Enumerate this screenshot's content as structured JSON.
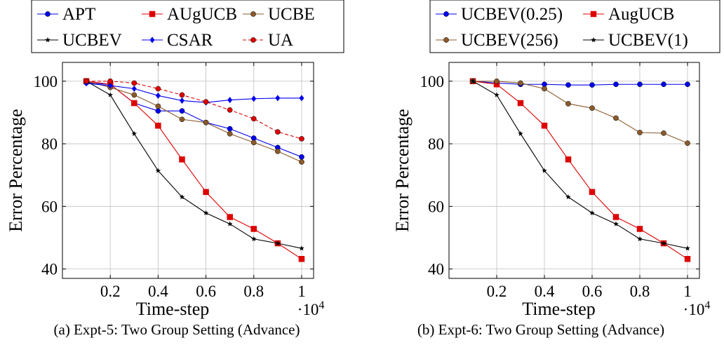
{
  "figure": {
    "captions": [
      "(a) Expt-5: Two Group Setting (Advance)",
      "(b) Expt-6: Two Group Setting (Advance)"
    ]
  },
  "chart_data": [
    {
      "type": "line",
      "xlabel": "Time-step",
      "ylabel": "Error Percentage",
      "x_multiplier": "·10^4",
      "x": [
        0.1,
        0.2,
        0.3,
        0.4,
        0.5,
        0.6,
        0.7,
        0.8,
        0.9,
        1.0
      ],
      "xlim": [
        0.0,
        1.05
      ],
      "ylim": [
        37,
        106
      ],
      "xticks": [
        0.2,
        0.4,
        0.6,
        0.8,
        1.0
      ],
      "xtick_labels": [
        "0.2",
        "0.4",
        "0.6",
        "0.8",
        "1"
      ],
      "yticks": [
        40,
        60,
        80,
        100
      ],
      "ytick_labels": [
        "40",
        "60",
        "80",
        "100"
      ],
      "grid": true,
      "legend_placement": "above, 3 columns",
      "series": [
        {
          "name": "APT",
          "color": "#0000ee",
          "marker": "circle",
          "dashed": false,
          "values": [
            99.5,
            99,
            93,
            90.5,
            90.5,
            86.8,
            84.8,
            81.8,
            78.8,
            75.8
          ]
        },
        {
          "name": "AUgUCB",
          "color": "#dd0000",
          "marker": "square",
          "dashed": false,
          "values": [
            100,
            99,
            93,
            85.8,
            75,
            64.6,
            56.6,
            52.8,
            48.2,
            43.2
          ]
        },
        {
          "name": "UCBE",
          "color": "#8b5a2b",
          "marker": "circle",
          "dashed": false,
          "values": [
            100,
            98,
            95.6,
            92,
            87.8,
            86.8,
            83.2,
            80.4,
            77.6,
            74.2
          ]
        },
        {
          "name": "UCBEV",
          "color": "#000000",
          "marker": "star",
          "dashed": false,
          "values": [
            100,
            95.6,
            83.2,
            71.4,
            63,
            57.9,
            54.4,
            49.6,
            48.2,
            46.6
          ]
        },
        {
          "name": "CSAR",
          "color": "#0000ee",
          "marker": "diamond",
          "dashed": false,
          "values": [
            99.3,
            98.6,
            97.6,
            95.4,
            93.8,
            93.2,
            94,
            94.4,
            94.6,
            94.6
          ]
        },
        {
          "name": "UA",
          "color": "#dd0000",
          "marker": "circle",
          "dashed": true,
          "values": [
            100,
            100,
            99.4,
            97.6,
            95.6,
            93.4,
            90.8,
            88,
            83.8,
            81.6
          ]
        }
      ]
    },
    {
      "type": "line",
      "xlabel": "Time-step",
      "ylabel": "Error Percentage",
      "x_multiplier": "·10^4",
      "x": [
        0.1,
        0.2,
        0.3,
        0.4,
        0.5,
        0.6,
        0.7,
        0.8,
        0.9,
        1.0
      ],
      "xlim": [
        0.0,
        1.05
      ],
      "ylim": [
        37,
        106
      ],
      "xticks": [
        0.2,
        0.4,
        0.6,
        0.8,
        1.0
      ],
      "xtick_labels": [
        "0.2",
        "0.4",
        "0.6",
        "0.8",
        "1"
      ],
      "yticks": [
        40,
        60,
        80,
        100
      ],
      "ytick_labels": [
        "40",
        "60",
        "80",
        "100"
      ],
      "grid": true,
      "legend_placement": "above, 2 columns",
      "series": [
        {
          "name": "UCBEV(0.25)",
          "color": "#0000ee",
          "marker": "circle",
          "dashed": false,
          "values": [
            100,
            99.4,
            99,
            99,
            98.8,
            98.8,
            99,
            99,
            99,
            99
          ]
        },
        {
          "name": "AugUCB",
          "color": "#dd0000",
          "marker": "square",
          "dashed": false,
          "values": [
            100,
            99,
            93,
            85.8,
            75,
            64.6,
            56.6,
            52.8,
            48.2,
            43.2
          ]
        },
        {
          "name": "UCBEV(256)",
          "color": "#8b5a2b",
          "marker": "circle",
          "dashed": false,
          "values": [
            100,
            100,
            99.4,
            97.6,
            92.8,
            91.4,
            88.2,
            83.6,
            83.4,
            80.2
          ]
        },
        {
          "name": "UCBEV(1)",
          "color": "#000000",
          "marker": "star",
          "dashed": false,
          "values": [
            100,
            95.6,
            83.2,
            71.4,
            63,
            57.9,
            54.4,
            49.6,
            48.2,
            46.6
          ]
        }
      ]
    }
  ]
}
